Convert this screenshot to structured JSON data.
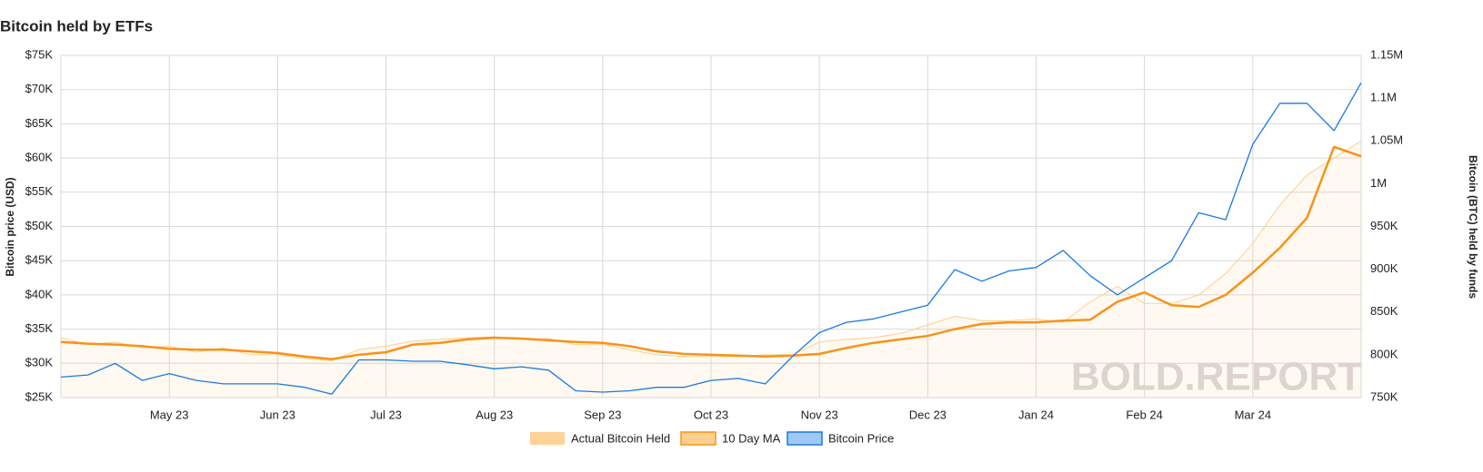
{
  "chart_data": {
    "type": "line",
    "title": "Bitcoin held by ETFs",
    "y_label": "Bitcoin price (USD)",
    "y2_label": "Bitcoin (BTC) held by funds",
    "watermark": "BOLD.REPORT",
    "categories": [
      null,
      null,
      null,
      null,
      "May 23",
      null,
      null,
      null,
      "Jun 23",
      null,
      null,
      null,
      "Jul 23",
      null,
      null,
      null,
      "Aug 23",
      null,
      null,
      null,
      "Sep 23",
      null,
      null,
      null,
      "Oct 23",
      null,
      null,
      null,
      "Nov 23",
      null,
      null,
      null,
      "Dec 23",
      null,
      null,
      null,
      "Jan 24",
      null,
      null,
      null,
      "Feb 24",
      null,
      null,
      null,
      "Mar 24",
      null,
      null,
      null,
      null
    ],
    "series": [
      {
        "name": "Actual Bitcoin Held",
        "color": "#fdcf8c",
        "axis": "y2",
        "values": [
          820000,
          812000,
          815000,
          808000,
          810000,
          803000,
          808000,
          800000,
          800000,
          796000,
          793000,
          806000,
          810000,
          816000,
          818000,
          820000,
          821000,
          818000,
          819000,
          812000,
          812000,
          806000,
          800000,
          798000,
          798000,
          798000,
          800000,
          800000,
          815000,
          818000,
          820000,
          825000,
          835000,
          845000,
          840000,
          840000,
          842000,
          838000,
          862000,
          880000,
          860000,
          860000,
          870000,
          895000,
          930000,
          975000,
          1010000,
          1030000,
          1050000
        ]
      },
      {
        "name": "10 Day MA",
        "color": "#f7931a",
        "axis": "y2",
        "values": [
          815000,
          813000,
          812000,
          810000,
          807000,
          806000,
          806000,
          804000,
          802000,
          798000,
          795000,
          800000,
          803000,
          812000,
          814000,
          818000,
          820000,
          819000,
          817000,
          815000,
          814000,
          810000,
          804000,
          801000,
          800000,
          799000,
          798000,
          799000,
          801000,
          808000,
          814000,
          818000,
          822000,
          830000,
          836000,
          838000,
          838000,
          840000,
          841000,
          862000,
          873000,
          858000,
          856000,
          870000,
          896000,
          925000,
          960000,
          1043000,
          1032000
        ]
      },
      {
        "name": "Bitcoin Price",
        "color": "#1a7ae0",
        "values": [
          28000,
          28300,
          30000,
          27500,
          28500,
          27500,
          27000,
          27000,
          27000,
          26500,
          25500,
          30500,
          30500,
          30300,
          30300,
          29800,
          29200,
          29500,
          29000,
          26000,
          25800,
          26000,
          26500,
          26500,
          27500,
          27800,
          27000,
          31000,
          34500,
          36000,
          36500,
          37500,
          38500,
          43700,
          42000,
          43500,
          44000,
          46500,
          42800,
          40000,
          42500,
          45000,
          52000,
          51000,
          62000,
          68000,
          68000,
          64000,
          71000
        ]
      }
    ],
    "ylim": [
      25000,
      75000
    ],
    "yticks": [
      {
        "value": 25000,
        "label": "$25K"
      },
      {
        "value": 30000,
        "label": "$30K"
      },
      {
        "value": 35000,
        "label": "$35K"
      },
      {
        "value": 40000,
        "label": "$40K"
      },
      {
        "value": 45000,
        "label": "$45K"
      },
      {
        "value": 50000,
        "label": "$50K"
      },
      {
        "value": 55000,
        "label": "$55K"
      },
      {
        "value": 60000,
        "label": "$60K"
      },
      {
        "value": 65000,
        "label": "$65K"
      },
      {
        "value": 70000,
        "label": "$70K"
      },
      {
        "value": 75000,
        "label": "$75K"
      }
    ],
    "y2lim": [
      750000,
      1150000
    ],
    "y2ticks": [
      {
        "value": 750000,
        "label": "750K"
      },
      {
        "value": 800000,
        "label": "800K"
      },
      {
        "value": 850000,
        "label": "850K"
      },
      {
        "value": 900000,
        "label": "900K"
      },
      {
        "value": 950000,
        "label": "950K"
      },
      {
        "value": 1000000,
        "label": "1M"
      },
      {
        "value": 1050000,
        "label": "1.05M"
      },
      {
        "value": 1100000,
        "label": "1.1M"
      },
      {
        "value": 1150000,
        "label": "1.15M"
      }
    ],
    "grid": true
  }
}
